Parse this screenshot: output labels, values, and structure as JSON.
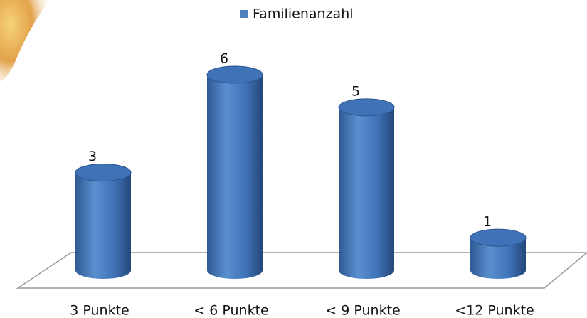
{
  "chart_data": {
    "type": "cylinder-bar",
    "categories": [
      "3 Punkte",
      "< 6 Punkte",
      "< 9 Punkte",
      "<12 Punkte"
    ],
    "series": [
      {
        "name": "Familienanzahl",
        "color": "#4f81bd",
        "values": [
          3,
          6,
          5,
          1
        ]
      }
    ]
  }
}
